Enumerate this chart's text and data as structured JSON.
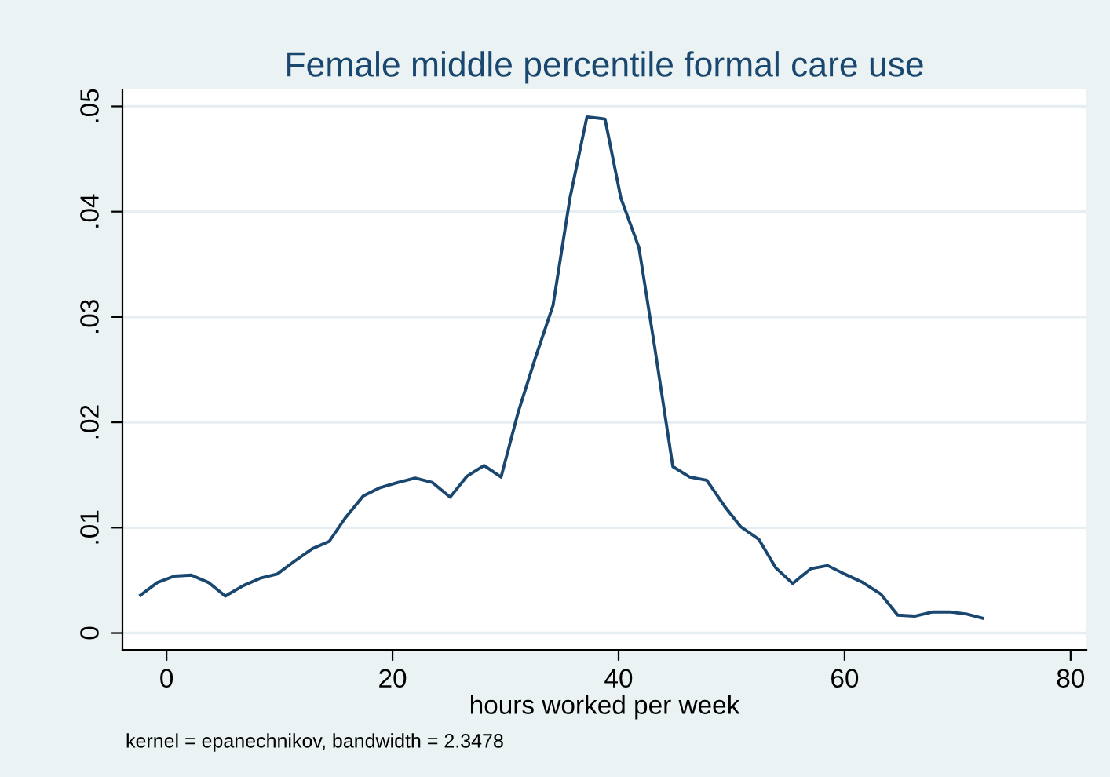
{
  "chart_data": {
    "type": "line",
    "title": "Female middle percentile formal care use",
    "xlabel": "hours worked per week",
    "annotations": [
      "kernel = epanechnikov, bandwidth = 2.3478"
    ],
    "x": [
      -2.3,
      -0.8,
      0.7,
      2.2,
      3.7,
      5.2,
      6.8,
      8.3,
      9.8,
      11.3,
      12.9,
      14.4,
      15.8,
      17.4,
      18.9,
      20.5,
      22.0,
      23.5,
      25.1,
      26.6,
      28.1,
      29.6,
      31.1,
      32.6,
      34.2,
      35.7,
      37.2,
      38.8,
      40.2,
      41.8,
      43.2,
      44.8,
      46.3,
      47.8,
      49.4,
      50.8,
      52.4,
      53.9,
      55.4,
      57.0,
      58.5,
      60.0,
      61.6,
      63.2,
      64.7,
      66.2,
      67.8,
      69.3,
      70.8,
      72.2
    ],
    "series": [
      {
        "color": "#1a476f",
        "values": [
          0.0036,
          0.0048,
          0.0054,
          0.0055,
          0.0048,
          0.0035,
          0.0045,
          0.0052,
          0.0056,
          0.0068,
          0.008,
          0.0087,
          0.0109,
          0.013,
          0.0138,
          0.0143,
          0.0147,
          0.0143,
          0.0129,
          0.0149,
          0.0159,
          0.0148,
          0.0209,
          0.026,
          0.0311,
          0.0413,
          0.049,
          0.0488,
          0.0413,
          0.0366,
          0.0271,
          0.0158,
          0.0148,
          0.0145,
          0.012,
          0.0101,
          0.0089,
          0.0062,
          0.0047,
          0.0061,
          0.0064,
          0.0056,
          0.0048,
          0.0037,
          0.0017,
          0.0016,
          0.002,
          0.002,
          0.0018,
          0.0014
        ]
      }
    ],
    "xlim": [
      -3.9,
      81.4
    ],
    "ylim": [
      -0.0016,
      0.0516
    ],
    "xticks": [
      0,
      20,
      40,
      60,
      80
    ],
    "yticks": [
      0,
      {
        "value": 0.01,
        "label": ".01"
      },
      {
        "value": 0.02,
        "label": ".02"
      },
      {
        "value": 0.03,
        "label": ".03"
      },
      {
        "value": 0.04,
        "label": ".04"
      },
      {
        "value": 0.05,
        "label": ".05"
      }
    ],
    "grid": "y",
    "legend": false
  }
}
